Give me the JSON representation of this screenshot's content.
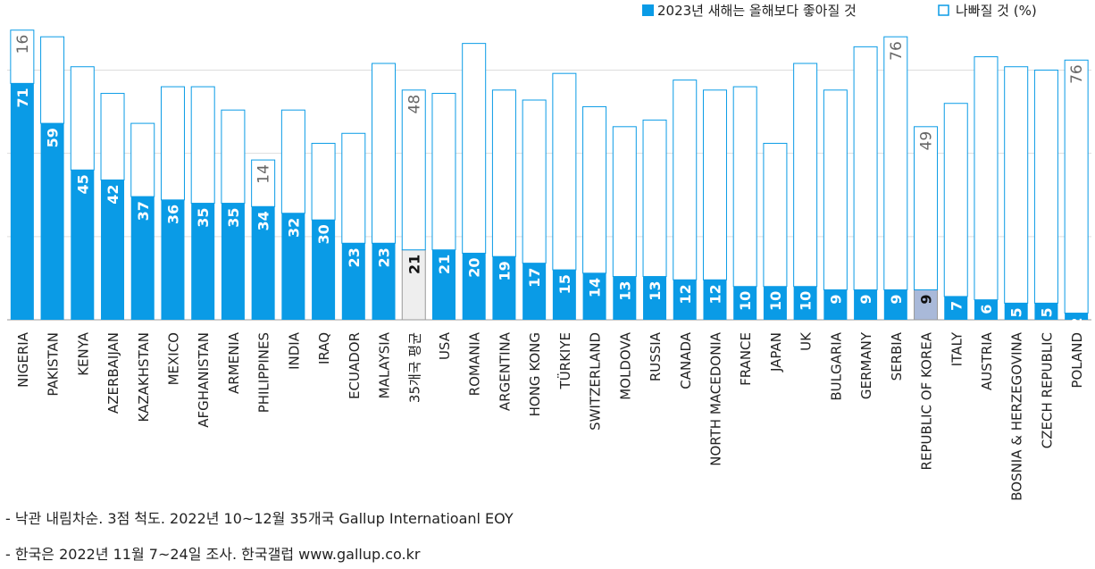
{
  "chart_data": {
    "type": "stacked_bar",
    "legend_position": "top-right",
    "categories": [
      "NIGERIA",
      "PAKISTAN",
      "KENYA",
      "AZERBAIJAN",
      "KAZAKHSTAN",
      "MEXICO",
      "AFGHANISTAN",
      "ARMENIA",
      "PHILIPPINES",
      "INDIA",
      "IRAQ",
      "ECUADOR",
      "MALAYSIA",
      "35개국 평균",
      "USA",
      "ROMANIA",
      "ARGENTINA",
      "HONG KONG",
      "TÜRKIYE",
      "SWITZERLAND",
      "MOLDOVA",
      "RUSSIA",
      "CANADA",
      "NORTH MACEDONIA",
      "FRANCE",
      "JAPAN",
      "UK",
      "BULGARIA",
      "GERMANY",
      "SERBIA",
      "REPUBLIC OF KOREA",
      "ITALY",
      "AUSTRIA",
      "BOSNIA & HERZEGOVINA",
      "CZECH REPUBLIC",
      "POLAND"
    ],
    "series": [
      {
        "name": "2023년 새해는 올해보다 좋아질 것",
        "color": "#0a9be6",
        "colors": [
          "#0a9be6",
          "#0a9be6",
          "#0a9be6",
          "#0a9be6",
          "#0a9be6",
          "#0a9be6",
          "#0a9be6",
          "#0a9be6",
          "#0a9be6",
          "#0a9be6",
          "#0a9be6",
          "#0a9be6",
          "#0a9be6",
          "#eeeeee",
          "#0a9be6",
          "#0a9be6",
          "#0a9be6",
          "#0a9be6",
          "#0a9be6",
          "#0a9be6",
          "#0a9be6",
          "#0a9be6",
          "#0a9be6",
          "#0a9be6",
          "#0a9be6",
          "#0a9be6",
          "#0a9be6",
          "#0a9be6",
          "#0a9be6",
          "#0a9be6",
          "#a9b9d9",
          "#0a9be6",
          "#0a9be6",
          "#0a9be6",
          "#0a9be6",
          "#0a9be6"
        ],
        "values": [
          71,
          59,
          45,
          42,
          37,
          36,
          35,
          35,
          34,
          32,
          30,
          23,
          23,
          21,
          21,
          20,
          19,
          17,
          15,
          14,
          13,
          13,
          12,
          12,
          10,
          10,
          10,
          9,
          9,
          9,
          9,
          7,
          6,
          5,
          5,
          2
        ]
      },
      {
        "name": "나빠질 것 (%)",
        "color": "#ffffff",
        "values": [
          16,
          26,
          31,
          26,
          22,
          34,
          35,
          28,
          14,
          31,
          23,
          33,
          54,
          48,
          47,
          63,
          50,
          49,
          59,
          50,
          45,
          47,
          60,
          57,
          60,
          43,
          67,
          60,
          73,
          76,
          49,
          58,
          73,
          71,
          70,
          76
        ],
        "value_labels": [
          "16",
          null,
          null,
          null,
          null,
          null,
          null,
          null,
          "14",
          null,
          null,
          null,
          null,
          "48",
          null,
          null,
          null,
          null,
          null,
          null,
          null,
          null,
          null,
          null,
          null,
          null,
          null,
          null,
          null,
          "76",
          "49",
          null,
          null,
          null,
          null,
          "76"
        ]
      }
    ],
    "ylim": [
      0,
      88
    ],
    "yticks": [
      0,
      25,
      50,
      75
    ],
    "grid": true,
    "notes": [
      "- 낙관 내림차순. 3점 척도. 2022년 10~12월 35개국 Gallup Internatioanl EOY",
      "- 한국은 2022년 11월 7~24일 조사. 한국갤럽 www.gallup.co.kr"
    ]
  }
}
